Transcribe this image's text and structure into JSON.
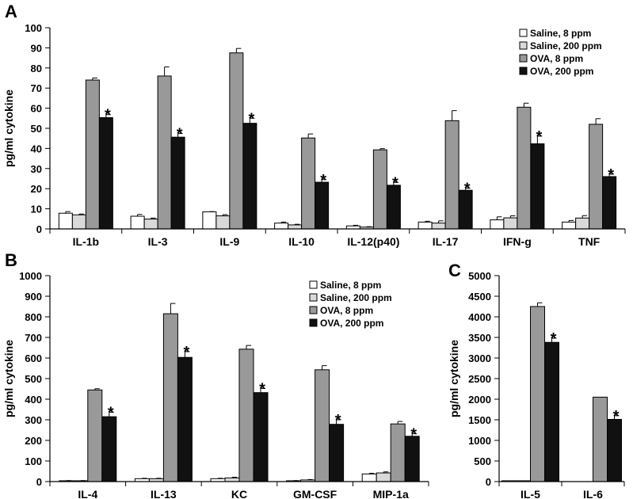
{
  "series_styles": [
    {
      "name": "Saline, 8 ppm",
      "color": "#ffffff"
    },
    {
      "name": "Saline, 200 ppm",
      "color": "#d9d9d9"
    },
    {
      "name": "OVA, 8 ppm",
      "color": "#999999"
    },
    {
      "name": "OVA, 200 ppm",
      "color": "#111111"
    }
  ],
  "chart_data": [
    {
      "id": "A",
      "panel_label": "A",
      "type": "bar",
      "ylabel": "pg/ml cytokine",
      "ylim": [
        0,
        100
      ],
      "yticks": [
        0,
        10,
        20,
        30,
        40,
        50,
        60,
        70,
        80,
        90,
        100
      ],
      "legend": "top-right",
      "categories": [
        "IL-1b",
        "IL-3",
        "IL-9",
        "IL-10",
        "IL-12(p40)",
        "IL-17",
        "IFN-g",
        "TNF"
      ],
      "series": [
        {
          "name": "Saline, 8 ppm",
          "values": [
            7.8,
            6.3,
            8.5,
            2.9,
            1.5,
            3.4,
            4.5,
            3.4
          ],
          "errors": [
            0.8,
            0.9,
            0.1,
            0.5,
            0.3,
            0.4,
            1.5,
            0.8
          ]
        },
        {
          "name": "Saline, 200 ppm",
          "values": [
            7.0,
            4.9,
            6.5,
            2.0,
            0.9,
            2.9,
            5.5,
            5.4
          ],
          "errors": [
            0.4,
            0.5,
            0.6,
            0.3,
            0.2,
            1.1,
            1.0,
            1.2
          ]
        },
        {
          "name": "OVA, 8 ppm",
          "values": [
            74.0,
            76.0,
            87.5,
            45.2,
            39.3,
            53.8,
            60.5,
            52.0
          ],
          "errors": [
            1.0,
            4.5,
            2.2,
            2.0,
            0.6,
            5.0,
            2.0,
            2.8
          ]
        },
        {
          "name": "OVA, 200 ppm",
          "values": [
            55.3,
            45.6,
            52.5,
            23.2,
            21.7,
            19.2,
            42.3,
            26.0
          ],
          "errors": [
            1.5,
            1.8,
            2.5,
            1.3,
            1.4,
            1.0,
            3.8,
            1.2
          ]
        }
      ],
      "significance": [
        {
          "category": "IL-1b",
          "series": "OVA, 200 ppm",
          "mark": "*"
        },
        {
          "category": "IL-3",
          "series": "OVA, 200 ppm",
          "mark": "*"
        },
        {
          "category": "IL-9",
          "series": "OVA, 200 ppm",
          "mark": "*"
        },
        {
          "category": "IL-10",
          "series": "OVA, 200 ppm",
          "mark": "*"
        },
        {
          "category": "IL-12(p40)",
          "series": "OVA, 200 ppm",
          "mark": "*"
        },
        {
          "category": "IL-17",
          "series": "OVA, 200 ppm",
          "mark": "*"
        },
        {
          "category": "IFN-g",
          "series": "OVA, 200 ppm",
          "mark": "*"
        },
        {
          "category": "TNF",
          "series": "OVA, 200 ppm",
          "mark": "*"
        }
      ]
    },
    {
      "id": "B",
      "panel_label": "B",
      "type": "bar",
      "ylabel": "pg/ml cytokine",
      "ylim": [
        0,
        1000
      ],
      "yticks": [
        0,
        100,
        200,
        300,
        400,
        500,
        600,
        700,
        800,
        900,
        1000
      ],
      "legend": "top-right",
      "categories": [
        "IL-4",
        "IL-13",
        "KC",
        "GM-CSF",
        "MIP-1a"
      ],
      "series": [
        {
          "name": "Saline, 8 ppm",
          "values": [
            4,
            14,
            14,
            4,
            37
          ],
          "errors": [
            1,
            2,
            2,
            1,
            3
          ]
        },
        {
          "name": "Saline, 200 ppm",
          "values": [
            4,
            14,
            18,
            8,
            42
          ],
          "errors": [
            1,
            2,
            3,
            2,
            5
          ]
        },
        {
          "name": "OVA, 8 ppm",
          "values": [
            445,
            815,
            643,
            543,
            280
          ],
          "errors": [
            6,
            50,
            18,
            20,
            12
          ]
        },
        {
          "name": "OVA, 200 ppm",
          "values": [
            315,
            603,
            432,
            278,
            220
          ],
          "errors": [
            22,
            28,
            20,
            22,
            12
          ]
        }
      ],
      "significance": [
        {
          "category": "IL-4",
          "series": "OVA, 200 ppm",
          "mark": "*"
        },
        {
          "category": "IL-13",
          "series": "OVA, 200 ppm",
          "mark": "*"
        },
        {
          "category": "KC",
          "series": "OVA, 200 ppm",
          "mark": "*"
        },
        {
          "category": "GM-CSF",
          "series": "OVA, 200 ppm",
          "mark": "*"
        },
        {
          "category": "MIP-1a",
          "series": "OVA, 200 ppm",
          "mark": "*"
        }
      ]
    },
    {
      "id": "C",
      "panel_label": "C",
      "type": "bar",
      "ylabel": "pg/ml cytokine",
      "ylim": [
        0,
        5000
      ],
      "yticks": [
        0,
        500,
        1000,
        1500,
        2000,
        2500,
        3000,
        3500,
        4000,
        4500,
        5000
      ],
      "legend": "none",
      "categories": [
        "IL-5",
        "IL-6"
      ],
      "series": [
        {
          "name": "Saline, 8 ppm",
          "values": [
            20,
            0
          ],
          "errors": [
            0,
            0
          ]
        },
        {
          "name": "Saline, 200 ppm",
          "values": [
            20,
            0
          ],
          "errors": [
            0,
            0
          ]
        },
        {
          "name": "OVA, 8 ppm",
          "values": [
            4250,
            2050
          ],
          "errors": [
            90,
            0
          ]
        },
        {
          "name": "OVA, 200 ppm",
          "values": [
            3380,
            1510
          ],
          "errors": [
            100,
            90
          ]
        }
      ],
      "significance": [
        {
          "category": "IL-5",
          "series": "OVA, 200 ppm",
          "mark": "*"
        },
        {
          "category": "IL-6",
          "series": "OVA, 200 ppm",
          "mark": "*"
        }
      ]
    }
  ]
}
